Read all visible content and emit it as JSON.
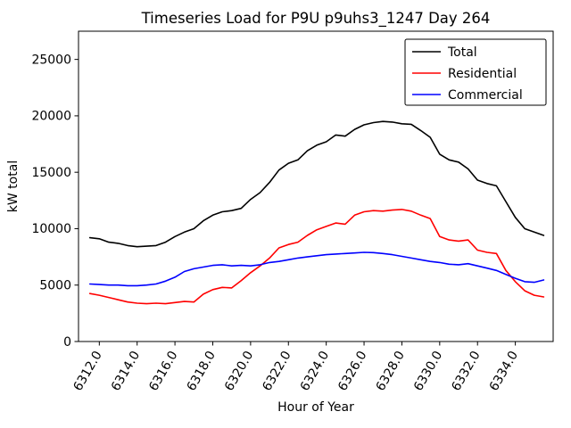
{
  "chart_data": {
    "type": "line",
    "title": "Timeseries Load for P9U p9uhs3_1247  Day 264",
    "xlabel": "Hour of Year",
    "ylabel": "kW total",
    "xlim": [
      6310.9,
      6336.0
    ],
    "ylim": [
      0,
      27500
    ],
    "grid": false,
    "legend_position": "upper right",
    "background_color": "#ffffff",
    "spine_color": "#000000",
    "yticks": [
      0,
      5000,
      10000,
      15000,
      20000,
      25000
    ],
    "ytick_labels": [
      "0",
      "5000",
      "10000",
      "15000",
      "20000",
      "25000"
    ],
    "xticks": [
      6312,
      6314,
      6316,
      6318,
      6320,
      6322,
      6324,
      6326,
      6328,
      6330,
      6332,
      6334
    ],
    "xtick_labels": [
      "6312.0",
      "6314.0",
      "6316.0",
      "6318.0",
      "6320.0",
      "6322.0",
      "6324.0",
      "6326.0",
      "6328.0",
      "6330.0",
      "6332.0",
      "6334.0"
    ],
    "x": [
      6311.5,
      6312.0,
      6312.5,
      6313.0,
      6313.5,
      6314.0,
      6314.5,
      6315.0,
      6315.5,
      6316.0,
      6316.5,
      6317.0,
      6317.5,
      6318.0,
      6318.5,
      6319.0,
      6319.5,
      6320.0,
      6320.5,
      6321.0,
      6321.5,
      6322.0,
      6322.5,
      6323.0,
      6323.5,
      6324.0,
      6324.5,
      6325.0,
      6325.5,
      6326.0,
      6326.5,
      6327.0,
      6327.5,
      6328.0,
      6328.5,
      6329.0,
      6329.5,
      6330.0,
      6330.5,
      6331.0,
      6331.5,
      6332.0,
      6332.5,
      6333.0,
      6333.5,
      6334.0,
      6334.5,
      6335.0,
      6335.5
    ],
    "series": [
      {
        "name": "Total",
        "color": "#000000",
        "values": [
          9200,
          9100,
          8800,
          8700,
          8500,
          8400,
          8450,
          8500,
          8800,
          9300,
          9700,
          10000,
          10700,
          11200,
          11500,
          11600,
          11800,
          12600,
          13200,
          14100,
          15200,
          15800,
          16100,
          16900,
          17400,
          17700,
          18300,
          18200,
          18800,
          19200,
          19400,
          19500,
          19450,
          19300,
          19250,
          18700,
          18100,
          16600,
          16100,
          15900,
          15300,
          14300,
          14000,
          13800,
          12400,
          11000,
          10000,
          9700,
          9400
        ]
      },
      {
        "name": "Residential",
        "color": "#ff0000",
        "values": [
          4250,
          4100,
          3900,
          3700,
          3500,
          3400,
          3350,
          3400,
          3350,
          3450,
          3550,
          3500,
          4200,
          4600,
          4800,
          4750,
          5400,
          6100,
          6700,
          7400,
          8300,
          8600,
          8800,
          9400,
          9900,
          10200,
          10500,
          10400,
          11200,
          11500,
          11600,
          11550,
          11650,
          11700,
          11550,
          11200,
          10900,
          9300,
          9000,
          8900,
          9000,
          8100,
          7900,
          7800,
          6300,
          5300,
          4500,
          4100,
          3950
        ]
      },
      {
        "name": "Commercial",
        "color": "#0000ff",
        "values": [
          5100,
          5050,
          5000,
          5000,
          4950,
          4950,
          5000,
          5100,
          5350,
          5700,
          6200,
          6450,
          6600,
          6750,
          6800,
          6700,
          6750,
          6700,
          6800,
          7000,
          7100,
          7250,
          7400,
          7500,
          7600,
          7700,
          7750,
          7800,
          7850,
          7900,
          7880,
          7800,
          7700,
          7550,
          7400,
          7250,
          7100,
          7000,
          6850,
          6800,
          6900,
          6700,
          6500,
          6300,
          5950,
          5600,
          5300,
          5250,
          5450
        ]
      }
    ]
  }
}
